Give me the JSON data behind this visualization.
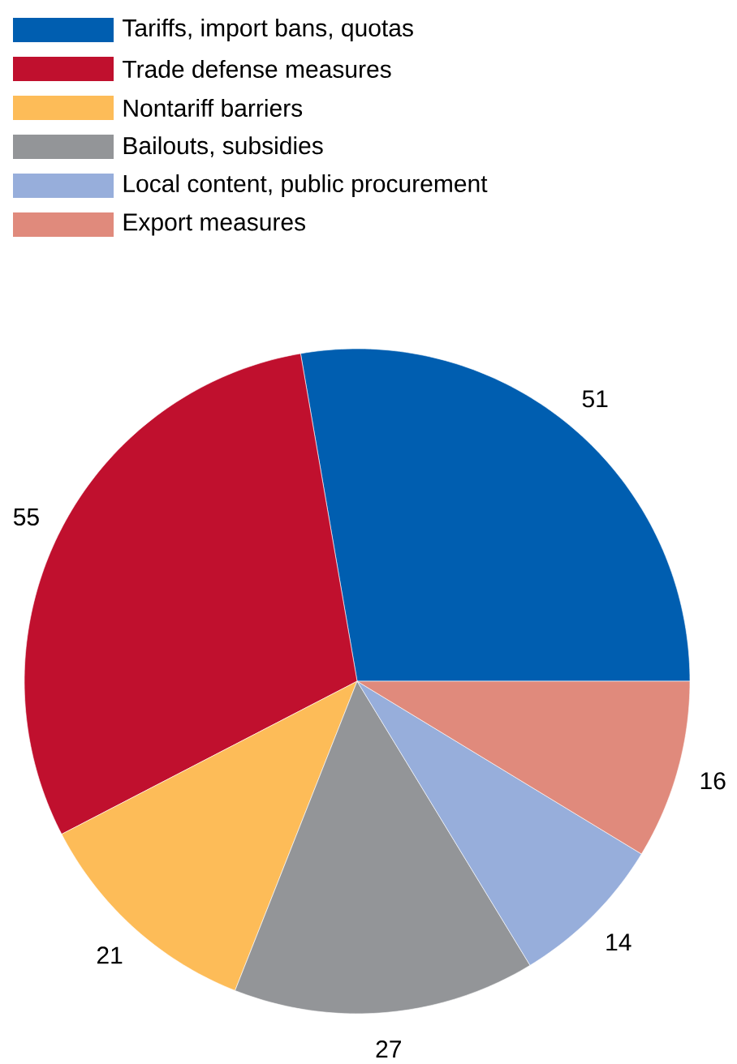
{
  "chart_data": {
    "type": "pie",
    "categories": [
      "Tariffs, import bans, quotas",
      "Trade defense measures",
      "Nontariff barriers",
      "Bailouts, subsidies",
      "Local content, public procurement",
      "Export measures"
    ],
    "values": [
      51,
      55,
      21,
      27,
      14,
      16
    ],
    "colors": [
      "#005eb0",
      "#c0102e",
      "#fdbc58",
      "#939598",
      "#97aedb",
      "#e08a7c"
    ],
    "data_labels": true,
    "legend": "top left"
  }
}
